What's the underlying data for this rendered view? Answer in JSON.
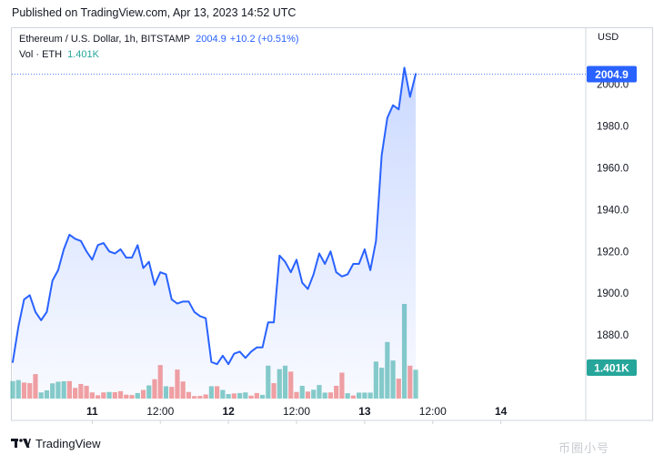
{
  "header": {
    "published": "Published on TradingView.com, Apr 13, 2023 14:52 UTC"
  },
  "legend": {
    "title": "Ethereum / U.S. Dollar, 1h, BITSTAMP",
    "price": "2004.9",
    "change": "+10.2 (+0.51%)",
    "vol_label": "Vol · ETH",
    "vol_value": "1.401K"
  },
  "axis": {
    "currency": "USD"
  },
  "badges": {
    "price": "2004.9",
    "volume": "1.401K"
  },
  "footer": {
    "brand": "TradingView",
    "watermark": "币圈小号"
  },
  "colors": {
    "line": "#2962ff",
    "vol_up": "#26a69a",
    "vol_down": "#ef5350",
    "price_badge": "#2962ff",
    "volume_badge": "#26a69a"
  },
  "chart_data": {
    "type": "area",
    "x_ticks": [
      {
        "label": "11",
        "bar": 14
      },
      {
        "label": "12:00",
        "bar": 26
      },
      {
        "label": "12",
        "bar": 38
      },
      {
        "label": "12:00",
        "bar": 50
      },
      {
        "label": "13",
        "bar": 62
      },
      {
        "label": "12:00",
        "bar": 74
      },
      {
        "label": "14",
        "bar": 86
      }
    ],
    "y_ticks": [
      1880,
      1900,
      1920,
      1940,
      1960,
      1980,
      2000
    ],
    "ylim": [
      1865.2,
      2012.5
    ],
    "price_series": {
      "name": "ETH/USD close",
      "values": [
        1867,
        1884,
        1897,
        1899,
        1891,
        1887,
        1891,
        1906,
        1911,
        1921,
        1928,
        1926,
        1925,
        1920,
        1916,
        1923,
        1924,
        1920,
        1919,
        1921,
        1917,
        1917,
        1923,
        1912,
        1915,
        1904,
        1910,
        1909,
        1897,
        1895,
        1896,
        1896,
        1891,
        1889,
        1888,
        1867,
        1866,
        1870,
        1866,
        1871,
        1872,
        1869,
        1872,
        1874,
        1874,
        1886,
        1886,
        1918,
        1915,
        1910,
        1916,
        1905,
        1902,
        1909,
        1919,
        1914,
        1920,
        1910,
        1908,
        1909,
        1914,
        1914,
        1921,
        1911,
        1925,
        1966,
        1984,
        1990,
        1988,
        2008,
        1994,
        2005
      ],
      "last": 2004.9
    },
    "volume_series": {
      "name": "Vol · ETH",
      "unit": "K",
      "ylim": [
        0,
        4.6
      ],
      "values": [
        0.85,
        0.9,
        0.78,
        0.75,
        1.19,
        0.3,
        0.4,
        0.74,
        0.82,
        0.84,
        0.85,
        0.52,
        0.71,
        0.62,
        0.3,
        0.16,
        0.3,
        0.32,
        0.31,
        0.36,
        0.19,
        0.17,
        0.27,
        0.42,
        0.64,
        0.94,
        1.63,
        0.6,
        0.57,
        1.41,
        0.83,
        0.32,
        0.12,
        0.13,
        0.2,
        0.6,
        0.6,
        0.42,
        0.22,
        0.25,
        0.27,
        0.3,
        0.14,
        0.27,
        0.18,
        1.6,
        0.75,
        1.43,
        1.6,
        1.31,
        0.32,
        0.62,
        0.34,
        0.43,
        0.66,
        0.29,
        0.3,
        0.62,
        1.26,
        0.26,
        0.15,
        0.29,
        0.29,
        0.29,
        1.8,
        1.5,
        2.75,
        1.85,
        0.97,
        4.6,
        1.6,
        1.4
      ],
      "up": [
        1,
        1,
        0,
        0,
        0,
        1,
        1,
        1,
        1,
        1,
        0,
        0,
        0,
        0,
        0,
        0,
        0,
        1,
        0,
        0,
        0,
        0,
        1,
        0,
        1,
        0,
        0,
        1,
        0,
        0,
        0,
        0,
        0,
        0,
        0,
        1,
        0,
        1,
        1,
        0,
        1,
        1,
        0,
        0,
        1,
        1,
        0,
        1,
        1,
        0,
        0,
        1,
        0,
        1,
        1,
        1,
        0,
        0,
        0,
        1,
        0,
        1,
        1,
        1,
        1,
        1,
        1,
        1,
        0,
        1,
        0,
        1
      ]
    }
  }
}
